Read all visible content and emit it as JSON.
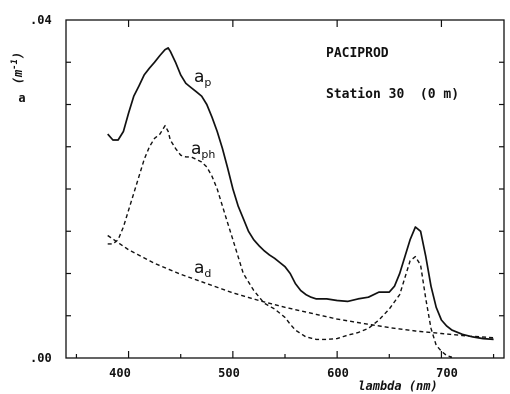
{
  "chart_data": {
    "type": "line",
    "xlabel": "lambda (nm)",
    "ylabel_symbol": "a",
    "ylabel_unit": "(m",
    "ylabel_unit_sup": "-1",
    "ylabel_unit_close": ")",
    "xlim": [
      340,
      760
    ],
    "ylim": [
      0,
      0.04
    ],
    "x_ticks": [
      400,
      500,
      600,
      700
    ],
    "x_tick_labels": [
      "400",
      "500",
      "600",
      "700"
    ],
    "y_tick_labels": [
      ".00",
      ".04"
    ],
    "y_tick_labels_at": [
      0,
      0.04
    ],
    "y_minor_ticks": [
      0.005,
      0.01,
      0.015,
      0.02,
      0.025,
      0.03,
      0.035
    ],
    "annotations": [
      "PACIPROD",
      "Station 30  (0 m)"
    ],
    "series": [
      {
        "name_main": "a",
        "name_sub": "p",
        "style": "solid",
        "x": [
          380,
          385,
          390,
          395,
          400,
          405,
          410,
          415,
          420,
          425,
          430,
          435,
          438,
          440,
          445,
          450,
          455,
          460,
          465,
          470,
          475,
          480,
          485,
          490,
          495,
          500,
          505,
          510,
          515,
          520,
          525,
          530,
          535,
          540,
          545,
          550,
          555,
          560,
          565,
          570,
          575,
          580,
          585,
          590,
          600,
          610,
          620,
          630,
          640,
          645,
          650,
          655,
          660,
          665,
          670,
          675,
          680,
          685,
          690,
          695,
          700,
          705,
          710,
          720,
          730,
          740,
          750
        ],
        "y": [
          0.0265,
          0.0258,
          0.0258,
          0.0268,
          0.029,
          0.031,
          0.0322,
          0.0335,
          0.0343,
          0.035,
          0.0358,
          0.0365,
          0.0367,
          0.0363,
          0.035,
          0.0335,
          0.0325,
          0.032,
          0.0315,
          0.031,
          0.03,
          0.0285,
          0.0268,
          0.0248,
          0.0225,
          0.02,
          0.018,
          0.0165,
          0.015,
          0.014,
          0.0133,
          0.0127,
          0.0122,
          0.0118,
          0.0113,
          0.0108,
          0.01,
          0.0088,
          0.008,
          0.0075,
          0.0072,
          0.007,
          0.007,
          0.007,
          0.0068,
          0.0067,
          0.007,
          0.0072,
          0.0078,
          0.0078,
          0.0078,
          0.0085,
          0.01,
          0.012,
          0.014,
          0.0155,
          0.015,
          0.012,
          0.0085,
          0.006,
          0.0045,
          0.0038,
          0.0033,
          0.0028,
          0.0025,
          0.0023,
          0.0022
        ]
      },
      {
        "name_main": "a",
        "name_sub": "ph",
        "style": "dashed",
        "x": [
          380,
          385,
          390,
          395,
          400,
          405,
          410,
          415,
          420,
          425,
          430,
          435,
          438,
          440,
          445,
          450,
          455,
          460,
          465,
          470,
          475,
          480,
          485,
          490,
          495,
          500,
          505,
          510,
          520,
          530,
          540,
          550,
          555,
          560,
          570,
          580,
          590,
          600,
          610,
          620,
          630,
          640,
          650,
          660,
          665,
          670,
          675,
          680,
          685,
          690,
          695,
          700,
          705,
          710
        ],
        "y": [
          0.0135,
          0.0135,
          0.014,
          0.0155,
          0.0175,
          0.0195,
          0.0215,
          0.0235,
          0.025,
          0.026,
          0.0265,
          0.0275,
          0.0268,
          0.0258,
          0.0248,
          0.024,
          0.0238,
          0.0238,
          0.0235,
          0.0232,
          0.0226,
          0.0215,
          0.02,
          0.018,
          0.016,
          0.014,
          0.012,
          0.01,
          0.008,
          0.0065,
          0.0058,
          0.0048,
          0.004,
          0.0033,
          0.0025,
          0.0022,
          0.0022,
          0.0023,
          0.0027,
          0.003,
          0.0035,
          0.0045,
          0.0058,
          0.0075,
          0.0095,
          0.0115,
          0.012,
          0.011,
          0.007,
          0.0035,
          0.0015,
          0.0008,
          0.0003,
          0.0001
        ]
      },
      {
        "name_main": "a",
        "name_sub": "d",
        "style": "dashed",
        "x": [
          380,
          400,
          425,
          450,
          475,
          500,
          525,
          550,
          575,
          600,
          625,
          650,
          675,
          700,
          725,
          750
        ],
        "y": [
          0.0145,
          0.0128,
          0.0112,
          0.0099,
          0.0088,
          0.0077,
          0.0068,
          0.006,
          0.0053,
          0.0046,
          0.0041,
          0.0036,
          0.0032,
          0.0029,
          0.0026,
          0.0024
        ]
      }
    ]
  }
}
